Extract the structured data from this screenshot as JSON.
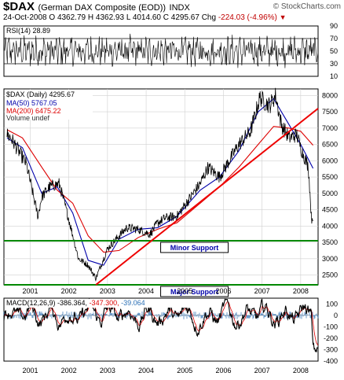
{
  "header": {
    "symbol": "$DAX",
    "name": "(German DAX Composite (EOD))",
    "exchange": "INDX",
    "brand": "© StockCharts.com",
    "date": "24-Oct-2008",
    "open_label": "O",
    "open": "4362.79",
    "high_label": "H",
    "high": "4362.93",
    "low_label": "L",
    "low": "4014.60",
    "close_label": "C",
    "close": "4295.67",
    "chg_label": "Chg",
    "chg": "-224.03 (-4.96%)"
  },
  "chart_data": [
    {
      "type": "line",
      "panel": "rsi",
      "title": "RSI(14) 28.89",
      "ylim": [
        10,
        90
      ],
      "yticks": [
        10,
        30,
        50,
        70,
        90
      ],
      "reference_lines": [
        30,
        70
      ]
    },
    {
      "type": "line",
      "panel": "price",
      "title": "$DAX (Daily) 4295.67",
      "legend": [
        "MA(50) 5767.05",
        "MA(200) 6475.22",
        "Volume undef"
      ],
      "ylim": [
        2200,
        8200
      ],
      "yticks": [
        2500,
        3000,
        3500,
        4000,
        4500,
        5000,
        5500,
        6000,
        6500,
        7000,
        7500,
        8000
      ],
      "xlabels": [
        "2001",
        "2002",
        "2003",
        "2004",
        "2005",
        "2006",
        "2007",
        "2008"
      ],
      "series": [
        {
          "name": "$DAX",
          "color": "#000000",
          "x": [
            2000.9,
            2001.0,
            2001.2,
            2001.4,
            2001.7,
            2001.8,
            2002.0,
            2002.25,
            2002.5,
            2002.75,
            2003.0,
            2003.2,
            2003.5,
            2003.8,
            2004.0,
            2004.3,
            2004.6,
            2004.8,
            2005.0,
            2005.3,
            2005.6,
            2005.9,
            2006.1,
            2006.4,
            2006.6,
            2006.9,
            2007.2,
            2007.45,
            2007.55,
            2007.7,
            2007.85,
            2008.0,
            2008.2,
            2008.4,
            2008.5,
            2008.7,
            2008.78,
            2008.82
          ],
          "values": [
            6800,
            6700,
            6300,
            5900,
            4300,
            4900,
            5200,
            5300,
            4200,
            3000,
            2800,
            2400,
            3300,
            3700,
            3950,
            3900,
            3750,
            4100,
            4250,
            4300,
            4800,
            5300,
            5800,
            5500,
            5900,
            6500,
            6900,
            7950,
            7800,
            7700,
            8000,
            7100,
            6700,
            6800,
            6400,
            5800,
            4200,
            4300
          ]
        },
        {
          "name": "MA(50)",
          "color": "#0000aa",
          "x": [
            2000.9,
            2001.3,
            2001.8,
            2002.2,
            2002.6,
            2003.0,
            2003.4,
            2003.8,
            2004.3,
            2004.8,
            2005.3,
            2005.9,
            2006.4,
            2006.9,
            2007.4,
            2007.8,
            2008.1,
            2008.5,
            2008.82
          ],
          "values": [
            6700,
            6400,
            5000,
            5200,
            4400,
            2950,
            2800,
            3600,
            3900,
            3950,
            4300,
            5100,
            5500,
            6300,
            7500,
            7900,
            7300,
            6500,
            5767
          ]
        },
        {
          "name": "MA(200)",
          "color": "#dd0000",
          "x": [
            2000.9,
            2001.3,
            2001.8,
            2002.2,
            2002.6,
            2003.0,
            2003.4,
            2003.8,
            2004.3,
            2004.8,
            2005.3,
            2005.9,
            2006.4,
            2006.9,
            2007.4,
            2007.8,
            2008.2,
            2008.5,
            2008.82
          ],
          "values": [
            6950,
            6700,
            5800,
            5100,
            4700,
            3700,
            3200,
            3250,
            3650,
            3900,
            4100,
            4700,
            5200,
            5800,
            6500,
            7050,
            7000,
            6900,
            6475
          ]
        }
      ],
      "annotations": [
        "Minor Support",
        "Major Support"
      ],
      "support_levels": [
        3550,
        2200
      ],
      "trendline": {
        "x": [
          2003.2,
          2008.95
        ],
        "values": [
          2200,
          7600
        ]
      }
    },
    {
      "type": "line",
      "panel": "macd",
      "title": "MACD(12,26,9)",
      "values_text": [
        "-386.364",
        "-347.300",
        "-39.064"
      ],
      "ylim": [
        -400,
        150
      ],
      "yticks": [
        -400,
        -300,
        -200,
        -100,
        0,
        100
      ],
      "xlabels": [
        "2001",
        "2002",
        "2003",
        "2004",
        "2005",
        "2006",
        "2007",
        "2008"
      ]
    }
  ],
  "colors": {
    "price": "#000000",
    "ma50": "#0000aa",
    "ma200": "#dd0000",
    "trend": "#ee0000",
    "support": "#008800",
    "macd_signal": "#dd0000",
    "histogram": "#2a6fb5",
    "neg": "#c00000"
  }
}
